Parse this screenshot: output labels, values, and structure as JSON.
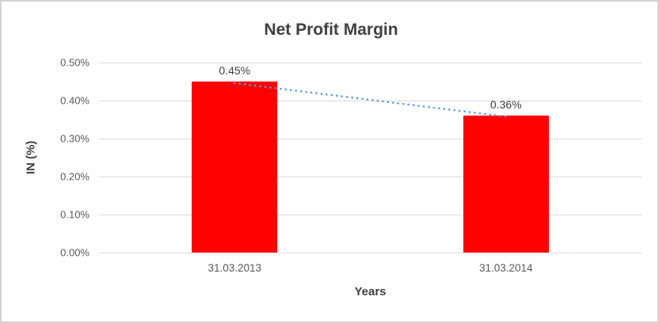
{
  "window": {
    "background": "#ffffff",
    "frame_color": "#d2d2d2"
  },
  "chart_data": {
    "type": "bar",
    "title": "Net Profit Margin",
    "xlabel": "Years",
    "ylabel": "IN (%)",
    "categories": [
      "31.03.2013",
      "31.03.2014"
    ],
    "values": [
      0.45,
      0.36
    ],
    "data_labels": [
      "0.45%",
      "0.36%"
    ],
    "y_ticks": [
      "0.50%",
      "0.40%",
      "0.30%",
      "0.20%",
      "0.10%",
      "0.00%"
    ],
    "ylim": [
      0,
      0.5
    ],
    "y_step": 0.1,
    "grid": true,
    "legend": false,
    "bar_color": "#ff0000",
    "gridline_color": "#d9d9d9",
    "text_color_dark": "#404040",
    "text_color_axis": "#595959",
    "trendline": {
      "style": "dotted",
      "color": "#5b9bd5",
      "from_value": 0.45,
      "to_value": 0.36
    }
  }
}
